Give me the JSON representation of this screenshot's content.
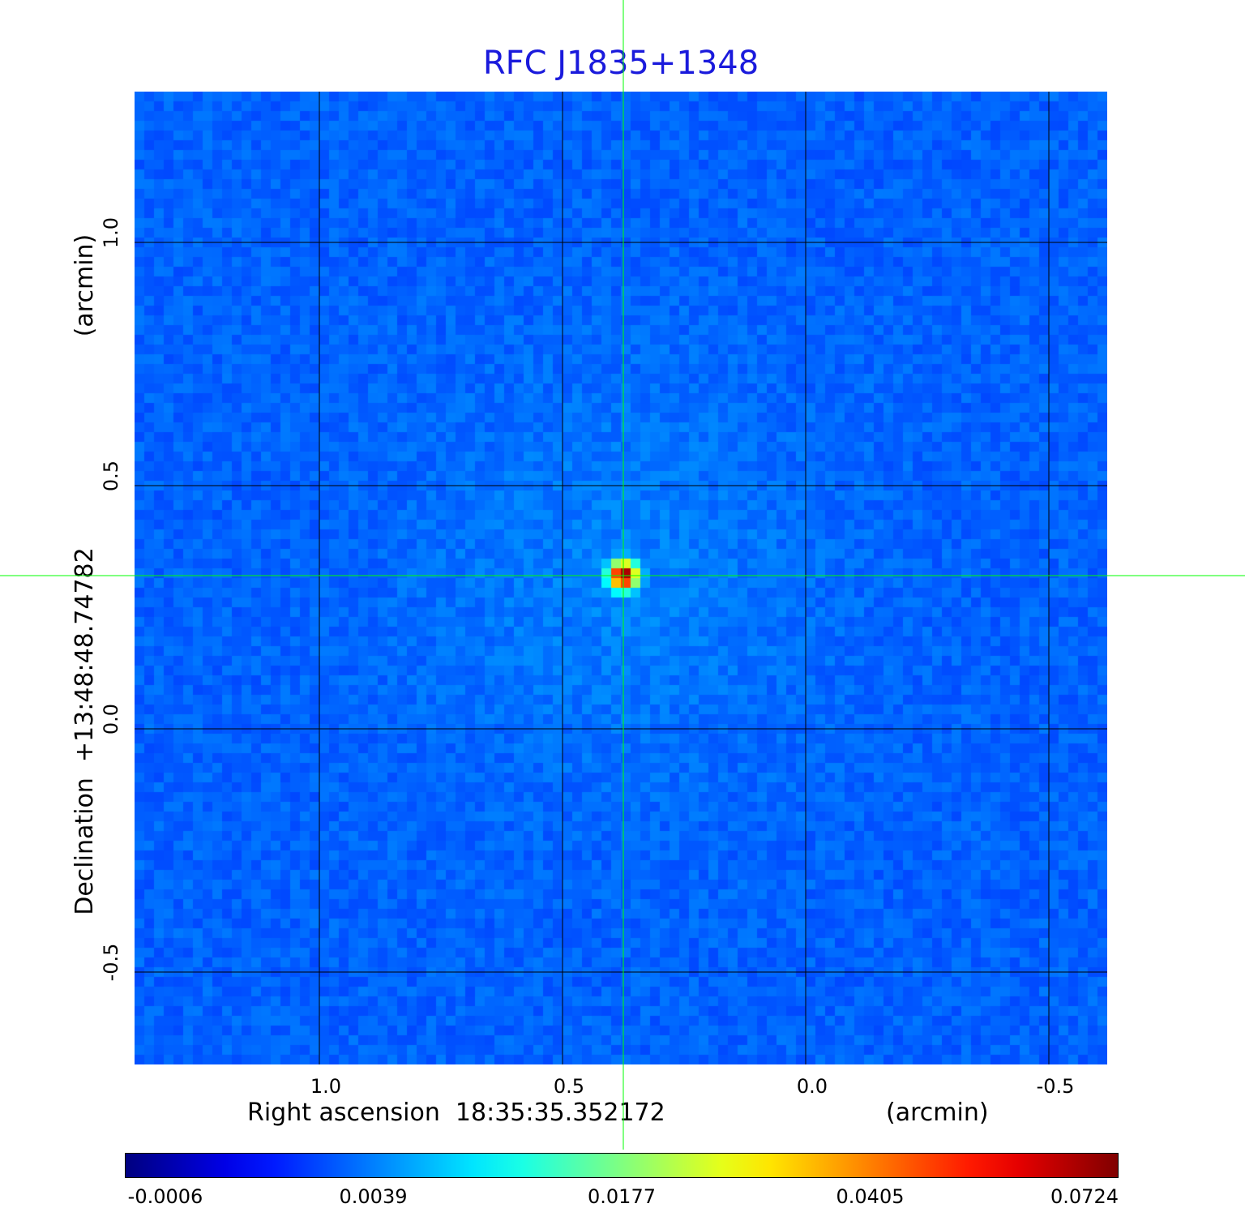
{
  "chart_data": {
    "type": "heatmap",
    "title": "RFC J1835+1348",
    "xlabel": "Right ascension  18:35:35.352172",
    "xlabel_unit": "(arcmin)",
    "ylabel": "Declination  +13:48:48.74782",
    "ylabel_unit": "(arcmin)",
    "xlim": [
      1.38,
      -0.62
    ],
    "ylim": [
      -0.69,
      1.31
    ],
    "x_ticks": [
      1.0,
      0.5,
      0.0,
      -0.5
    ],
    "x_tick_labels": [
      "1.0",
      "0.5",
      "0.0",
      "-0.5"
    ],
    "y_ticks": [
      1.0,
      0.5,
      0.0,
      -0.5
    ],
    "y_tick_labels": [
      "1.0",
      "0.5",
      "0.0",
      "-0.5"
    ],
    "grid": true,
    "source": {
      "x": 0.375,
      "y": 0.315,
      "peak": 0.0724
    },
    "crosshair": {
      "x": 0.375,
      "y": 0.315
    },
    "colorbar": {
      "colormap": "jet",
      "tick_labels": [
        "-0.0006",
        "0.0039",
        "0.0177",
        "0.0405",
        "0.0724"
      ],
      "min": -0.0006,
      "max": 0.0724
    },
    "colors": {
      "title": "#1a1adc",
      "background": "#1133f5",
      "grid": "#000000",
      "crosshair": "#00ff00"
    }
  }
}
